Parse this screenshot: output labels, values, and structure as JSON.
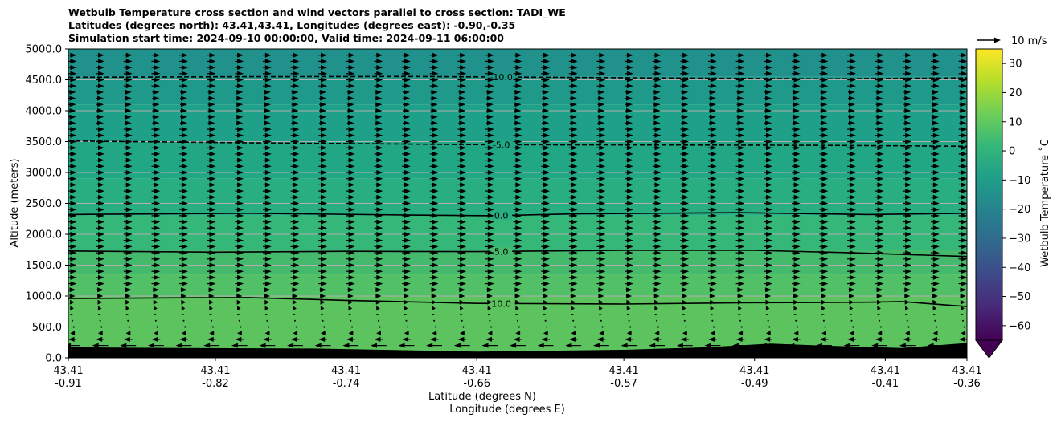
{
  "chart_data": {
    "type": "heatmap",
    "title_lines": [
      "Wetbulb Temperature cross section and wind vectors parallel to cross section: TADI_WE",
      "Latitudes (degrees north): 43.41,43.41, Longitudes (degrees east): -0.90,-0.35",
      "Simulation start time: 2024-09-10 00:00:00, Valid time: 2024-09-11 06:00:00"
    ],
    "ylabel": "Altitude (meters)",
    "xlabel_lines": [
      "Latitude (degrees N)",
      "Longitude (degrees E)"
    ],
    "ylim": [
      0,
      5000
    ],
    "xlim": [
      -0.91,
      -0.36
    ],
    "y_ticks": [
      0,
      500,
      1000,
      1500,
      2000,
      2500,
      3000,
      3500,
      4000,
      4500,
      5000
    ],
    "y_tick_labels": [
      "0.0",
      "500.0",
      "1000.0",
      "1500.0",
      "2000.0",
      "2500.0",
      "3000.0",
      "3500.0",
      "4000.0",
      "4500.0",
      "5000.0"
    ],
    "x_ticks": [
      {
        "lon": -0.91,
        "lat_label": "43.41",
        "lon_label": "-0.91"
      },
      {
        "lon": -0.82,
        "lat_label": "43.41",
        "lon_label": "-0.82"
      },
      {
        "lon": -0.74,
        "lat_label": "43.41",
        "lon_label": "-0.74"
      },
      {
        "lon": -0.66,
        "lat_label": "43.41",
        "lon_label": "-0.66"
      },
      {
        "lon": -0.57,
        "lat_label": "43.41",
        "lon_label": "-0.57"
      },
      {
        "lon": -0.49,
        "lat_label": "43.41",
        "lon_label": "-0.49"
      },
      {
        "lon": -0.41,
        "lat_label": "43.41",
        "lon_label": "-0.41"
      },
      {
        "lon": -0.36,
        "lat_label": "43.41",
        "lon_label": "-0.36"
      }
    ],
    "grid": "horizontal",
    "temperature_bands": [
      {
        "from": 0,
        "to": 1000,
        "value": 11,
        "color": "#5cc35f"
      },
      {
        "from": 1000,
        "to": 1350,
        "value": 8,
        "color": "#52c066"
      },
      {
        "from": 1350,
        "to": 1750,
        "value": 5,
        "color": "#45ba6c"
      },
      {
        "from": 1750,
        "to": 2300,
        "value": 2,
        "color": "#35b779"
      },
      {
        "from": 2300,
        "to": 2900,
        "value": -1,
        "color": "#28ae80"
      },
      {
        "from": 2900,
        "to": 3500,
        "value": -4,
        "color": "#22a785"
      },
      {
        "from": 3500,
        "to": 4100,
        "value": -7,
        "color": "#1fa088"
      },
      {
        "from": 4100,
        "to": 4550,
        "value": -9,
        "color": "#1f9a8a"
      },
      {
        "from": 4550,
        "to": 5000,
        "value": -11,
        "color": "#21918c"
      }
    ],
    "contours": [
      {
        "level": -10,
        "label": "-10.0",
        "style": "dashed",
        "label_lon": -0.645,
        "points": [
          [
            -0.91,
            4540
          ],
          [
            -0.8,
            4550
          ],
          [
            -0.7,
            4555
          ],
          [
            -0.65,
            4545
          ],
          [
            -0.55,
            4530
          ],
          [
            -0.45,
            4515
          ],
          [
            -0.36,
            4530
          ]
        ]
      },
      {
        "level": -5,
        "label": "-5.0",
        "style": "dashed",
        "label_lon": -0.645,
        "points": [
          [
            -0.91,
            3510
          ],
          [
            -0.8,
            3480
          ],
          [
            -0.7,
            3460
          ],
          [
            -0.65,
            3450
          ],
          [
            -0.55,
            3445
          ],
          [
            -0.45,
            3440
          ],
          [
            -0.36,
            3425
          ]
        ]
      },
      {
        "level": 0,
        "label": "0.0",
        "style": "solid",
        "label_lon": -0.645,
        "points": [
          [
            -0.91,
            2320
          ],
          [
            -0.8,
            2340
          ],
          [
            -0.7,
            2310
          ],
          [
            -0.65,
            2300
          ],
          [
            -0.6,
            2330
          ],
          [
            -0.5,
            2350
          ],
          [
            -0.42,
            2320
          ],
          [
            -0.36,
            2340
          ]
        ]
      },
      {
        "level": 5,
        "label": "5.0",
        "style": "solid",
        "label_lon": -0.645,
        "points": [
          [
            -0.91,
            1730
          ],
          [
            -0.82,
            1710
          ],
          [
            -0.74,
            1725
          ],
          [
            -0.66,
            1720
          ],
          [
            -0.57,
            1740
          ],
          [
            -0.49,
            1740
          ],
          [
            -0.43,
            1700
          ],
          [
            -0.36,
            1640
          ]
        ]
      },
      {
        "level": 10,
        "label": "10.0",
        "style": "solid",
        "label_lon": -0.645,
        "points": [
          [
            -0.91,
            960
          ],
          [
            -0.85,
            970
          ],
          [
            -0.8,
            975
          ],
          [
            -0.74,
            930
          ],
          [
            -0.66,
            880
          ],
          [
            -0.57,
            870
          ],
          [
            -0.5,
            890
          ],
          [
            -0.42,
            900
          ],
          [
            -0.4,
            910
          ],
          [
            -0.36,
            830
          ]
        ]
      }
    ],
    "terrain": [
      [
        -0.91,
        170
      ],
      [
        -0.84,
        160
      ],
      [
        -0.76,
        150
      ],
      [
        -0.66,
        100
      ],
      [
        -0.57,
        130
      ],
      [
        -0.52,
        170
      ],
      [
        -0.48,
        230
      ],
      [
        -0.45,
        200
      ],
      [
        -0.4,
        160
      ],
      [
        -0.36,
        240
      ]
    ],
    "wind": {
      "reference_speed": 10,
      "reference_label": "10 m/s",
      "columns": 33,
      "levels": [
        {
          "z": 200,
          "u": -11
        },
        {
          "z": 300,
          "u": -6
        },
        {
          "z": 400,
          "u": -3
        },
        {
          "z": 500,
          "u": -1
        },
        {
          "z": 600,
          "u": 0
        },
        {
          "z": 700,
          "u": 1
        },
        {
          "z": 800,
          "u": 2
        },
        {
          "z": 900,
          "u": 3
        },
        {
          "z": 1000,
          "u": 4
        },
        {
          "z": 1100,
          "u": 5
        },
        {
          "z": 1200,
          "u": 6
        },
        {
          "z": 1300,
          "u": 6
        },
        {
          "z": 1400,
          "u": 6
        },
        {
          "z": 1500,
          "u": 6
        },
        {
          "z": 1600,
          "u": 6
        },
        {
          "z": 1700,
          "u": 6
        },
        {
          "z": 1800,
          "u": 6
        },
        {
          "z": 1900,
          "u": 6
        },
        {
          "z": 2000,
          "u": 6
        },
        {
          "z": 2100,
          "u": 6
        },
        {
          "z": 2200,
          "u": 6
        },
        {
          "z": 2300,
          "u": 6
        },
        {
          "z": 2400,
          "u": 6
        },
        {
          "z": 2500,
          "u": 6
        },
        {
          "z": 2600,
          "u": 6
        },
        {
          "z": 2700,
          "u": 6
        },
        {
          "z": 2800,
          "u": 6
        },
        {
          "z": 2900,
          "u": 6
        },
        {
          "z": 3000,
          "u": 6
        },
        {
          "z": 3100,
          "u": 6
        },
        {
          "z": 3200,
          "u": 6
        },
        {
          "z": 3300,
          "u": 6
        },
        {
          "z": 3400,
          "u": 6
        },
        {
          "z": 3500,
          "u": 6
        },
        {
          "z": 3600,
          "u": 6
        },
        {
          "z": 3700,
          "u": 6
        },
        {
          "z": 3800,
          "u": 5
        },
        {
          "z": 3900,
          "u": 5
        },
        {
          "z": 4000,
          "u": 5
        },
        {
          "z": 4100,
          "u": 5
        },
        {
          "z": 4200,
          "u": 5
        },
        {
          "z": 4300,
          "u": 5
        },
        {
          "z": 4400,
          "u": 6
        },
        {
          "z": 4500,
          "u": 6
        },
        {
          "z": 4600,
          "u": 6
        },
        {
          "z": 4700,
          "u": 6
        },
        {
          "z": 4800,
          "u": 6
        },
        {
          "z": 4900,
          "u": 6
        }
      ]
    },
    "colorbar": {
      "label": "Wetbulb Temperature $^\\circ$C",
      "label_text": "Wetbulb Temperature ˚C",
      "range": [
        -65,
        35
      ],
      "extend": "min",
      "ticks": [
        30,
        20,
        10,
        0,
        -10,
        -20,
        -30,
        -40,
        -50,
        -60
      ],
      "tick_labels": [
        "30",
        "20",
        "10",
        "0",
        "−10",
        "−20",
        "−30",
        "−40",
        "−50",
        "−60"
      ],
      "colormap": "viridis"
    }
  }
}
